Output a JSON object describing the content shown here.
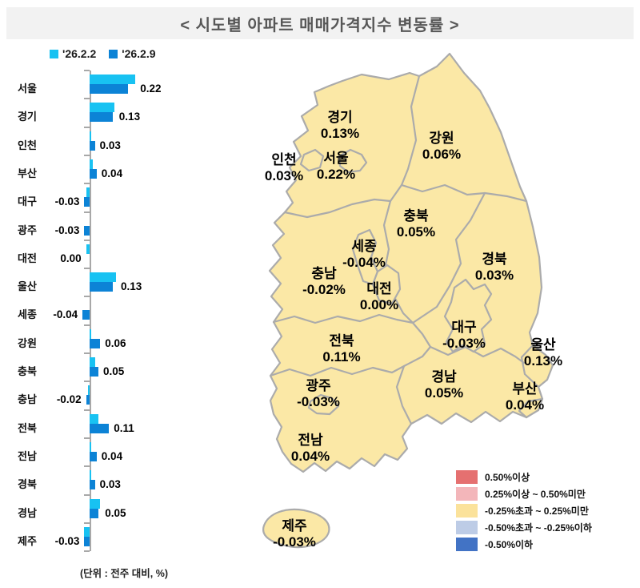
{
  "title": "<  시도별  아파트  매매가격지수  변동률  >",
  "colors": {
    "series_prev": "#18C2F2",
    "series_curr": "#0C83D6",
    "map_fill": "#FBE8A6",
    "map_border": "#ABABAB",
    "title_bg": "#F2F2F2"
  },
  "chart_data": {
    "type": "bar",
    "orientation": "horizontal",
    "unit_note": "(단위 : 전주 대비, %)",
    "categories": [
      "서울",
      "경기",
      "인천",
      "부산",
      "대구",
      "광주",
      "대전",
      "울산",
      "세종",
      "강원",
      "충북",
      "충남",
      "전북",
      "전남",
      "경북",
      "경남",
      "제주"
    ],
    "series": [
      {
        "name": "'26.2.2",
        "color": "#18C2F2",
        "values": [
          0.26,
          0.14,
          0.01,
          0.02,
          -0.02,
          0.0,
          -0.02,
          0.15,
          0.0,
          0.01,
          0.03,
          -0.01,
          0.05,
          0.01,
          0.01,
          0.06,
          -0.03
        ]
      },
      {
        "name": "'26.2.9",
        "color": "#0C83D6",
        "values": [
          0.22,
          0.13,
          0.03,
          0.04,
          -0.03,
          -0.03,
          0.0,
          0.13,
          -0.04,
          0.06,
          0.05,
          -0.02,
          0.11,
          0.04,
          0.03,
          0.05,
          -0.03
        ]
      }
    ],
    "value_label_series": "'26.2.9",
    "xlim": [
      -0.1,
      0.35
    ],
    "grid": false,
    "legend_position": "top"
  },
  "map": {
    "regions": [
      {
        "id": "gyeonggi",
        "name": "경기",
        "value": "0.13%"
      },
      {
        "id": "incheon",
        "name": "인천",
        "value": "0.03%"
      },
      {
        "id": "seoul",
        "name": "서울",
        "value": "0.22%"
      },
      {
        "id": "gangwon",
        "name": "강원",
        "value": "0.06%"
      },
      {
        "id": "chungbuk",
        "name": "충북",
        "value": "0.05%"
      },
      {
        "id": "sejong",
        "name": "세종",
        "value": "-0.04%"
      },
      {
        "id": "chungnam",
        "name": "충남",
        "value": "-0.02%"
      },
      {
        "id": "daejeon",
        "name": "대전",
        "value": "0.00%"
      },
      {
        "id": "gyeongbuk",
        "name": "경북",
        "value": "0.03%"
      },
      {
        "id": "jeonbuk",
        "name": "전북",
        "value": "0.11%"
      },
      {
        "id": "daegu",
        "name": "대구",
        "value": "-0.03%"
      },
      {
        "id": "ulsan",
        "name": "울산",
        "value": "0.13%"
      },
      {
        "id": "gyeongnam",
        "name": "경남",
        "value": "0.05%"
      },
      {
        "id": "busan",
        "name": "부산",
        "value": "0.04%"
      },
      {
        "id": "gwangju",
        "name": "광주",
        "value": "-0.03%"
      },
      {
        "id": "jeonnam",
        "name": "전남",
        "value": "0.04%"
      },
      {
        "id": "jeju",
        "name": "제주",
        "value": "-0.03%"
      }
    ],
    "legend": [
      {
        "label": "0.50%이상",
        "color": "#E57070"
      },
      {
        "label": "0.25%이상 ~ 0.50%미만",
        "color": "#F3B6BA"
      },
      {
        "label": "-0.25%초과 ~ 0.25%미만",
        "color": "#FBE29B"
      },
      {
        "label": "-0.50%초과 ~ -0.25%이하",
        "color": "#BDCCE6"
      },
      {
        "label": "-0.50%이하",
        "color": "#4273C5"
      }
    ]
  }
}
